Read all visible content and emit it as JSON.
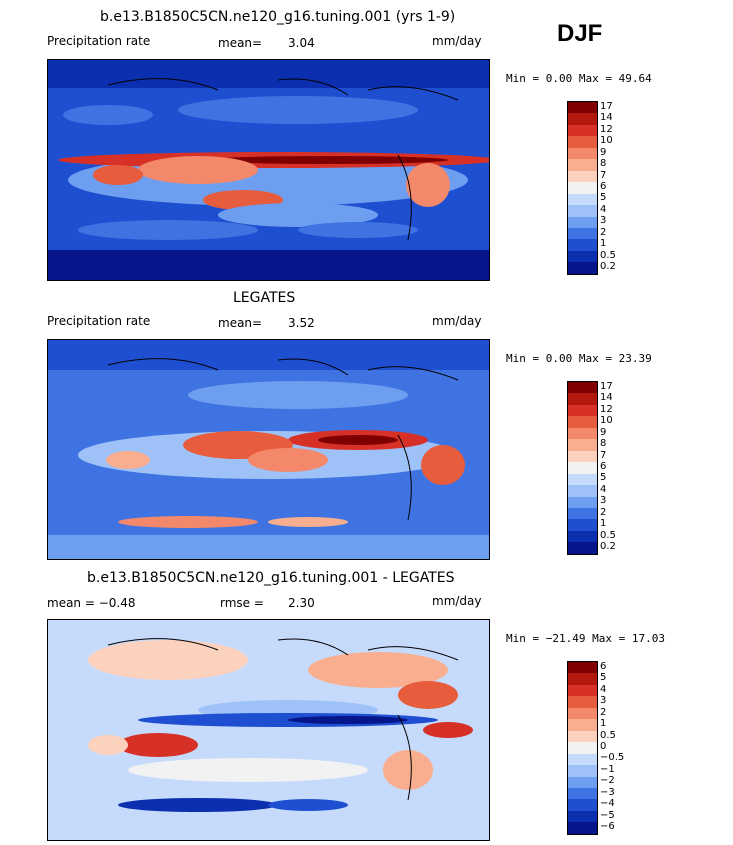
{
  "season": "DJF",
  "panels": [
    {
      "title": "b.e13.B1850C5CN.ne120_g16.tuning.001 (yrs 1-9)",
      "left_label": "Precipitation rate",
      "center_label": "mean=",
      "center_value": "3.04",
      "right_label": "mm/day",
      "range_text": "Min =    0.00 Max =  49.64",
      "colorbar": {
        "colors": [
          "#7f0000",
          "#b2180e",
          "#d73027",
          "#e65c3c",
          "#f4886a",
          "#f9ae90",
          "#fcd1bd",
          "#f2f2f2",
          "#c6dbfc",
          "#9ec2f7",
          "#6e9eef",
          "#3f73e2",
          "#1f4fd1",
          "#0c2fb0",
          "#06168a"
        ],
        "labels": [
          "17",
          "14",
          "12",
          "10",
          "9",
          "8",
          "7",
          "6",
          "5",
          "4",
          "3",
          "2",
          "1",
          "0.5",
          "0.2"
        ]
      }
    },
    {
      "title": "LEGATES",
      "left_label": "Precipitation rate",
      "center_label": "mean=",
      "center_value": "3.52",
      "right_label": "mm/day",
      "range_text": "Min =    0.00 Max =  23.39",
      "colorbar": {
        "colors": [
          "#7f0000",
          "#b2180e",
          "#d73027",
          "#e65c3c",
          "#f4886a",
          "#f9ae90",
          "#fcd1bd",
          "#f2f2f2",
          "#c6dbfc",
          "#9ec2f7",
          "#6e9eef",
          "#3f73e2",
          "#1f4fd1",
          "#0c2fb0",
          "#06168a"
        ],
        "labels": [
          "17",
          "14",
          "12",
          "10",
          "9",
          "8",
          "7",
          "6",
          "5",
          "4",
          "3",
          "2",
          "1",
          "0.5",
          "0.2"
        ]
      }
    },
    {
      "title": "b.e13.B1850C5CN.ne120_g16.tuning.001 - LEGATES",
      "left_label": "mean =  −0.48",
      "center_label": "rmse =",
      "center_value": "2.30",
      "right_label": "mm/day",
      "range_text": "Min = −21.49 Max =  17.03",
      "colorbar": {
        "colors": [
          "#7f0000",
          "#b2180e",
          "#d73027",
          "#e65c3c",
          "#f4886a",
          "#f9ae90",
          "#fcd1bd",
          "#f2f2f2",
          "#c6dbfc",
          "#9ec2f7",
          "#6e9eef",
          "#3f73e2",
          "#1f4fd1",
          "#0c2fb0",
          "#06168a"
        ],
        "labels": [
          "6",
          "5",
          "4",
          "3",
          "2",
          "1",
          "0.5",
          "0",
          "−0.5",
          "−1",
          "−2",
          "−3",
          "−4",
          "−5",
          "−6"
        ]
      }
    }
  ],
  "chart_data": [
    {
      "type": "heatmap",
      "title": "b.e13.B1850C5CN.ne120_g16.tuning.001 (yrs 1-9)",
      "variable": "Precipitation rate",
      "units": "mm/day",
      "mean": 3.04,
      "min": 0.0,
      "max": 49.64,
      "levels": [
        0.2,
        0.5,
        1,
        2,
        3,
        4,
        5,
        6,
        7,
        8,
        9,
        10,
        12,
        14,
        17
      ]
    },
    {
      "type": "heatmap",
      "title": "LEGATES",
      "variable": "Precipitation rate",
      "units": "mm/day",
      "mean": 3.52,
      "min": 0.0,
      "max": 23.39,
      "levels": [
        0.2,
        0.5,
        1,
        2,
        3,
        4,
        5,
        6,
        7,
        8,
        9,
        10,
        12,
        14,
        17
      ]
    },
    {
      "type": "heatmap",
      "title": "b.e13.B1850C5CN.ne120_g16.tuning.001 - LEGATES",
      "units": "mm/day",
      "mean": -0.48,
      "rmse": 2.3,
      "min": -21.49,
      "max": 17.03,
      "levels": [
        -6,
        -5,
        -4,
        -3,
        -2,
        -1,
        -0.5,
        0,
        0.5,
        1,
        2,
        3,
        4,
        5,
        6
      ]
    }
  ]
}
